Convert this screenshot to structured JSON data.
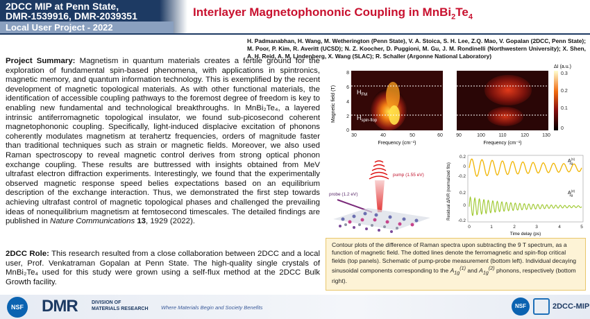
{
  "header": {
    "line1": "2DCC MIP at Penn State,",
    "line2": "DMR-1539916, DMR-2039351",
    "subline": "Local User Project - 2022",
    "title_main": "Interlayer Magnetophononic Coupling in MnBi",
    "title_sub1": "2",
    "title_mid": "Te",
    "title_sub2": "4"
  },
  "authors": "H. Padmanabhan, H. Wang, M. Wetherington (Penn State), V. A. Stoica, S. H. Lee, Z.Q. Mao, V. Gopalan (2DCC, Penn State); M. Poor, P. Kim, R. Averitt (UCSD); N. Z. Koocher, D. Puggioni, M. Gu, J. M. Rondinelli (Northwestern University); X. Shen, A. H. Reid, A. M. Lindenberg, X. Wang (SLAC); R. Schaller (Argonne National Laboratory)",
  "summary": {
    "label": "Project Summary:",
    "text": "Magnetism in quantum materials creates a fertile ground for the exploration of fundamental spin-based phenomena, with applications in spintronics, magnetic memory, and quantum information technology. This is exemplified by the recent development of magnetic topological materials. As with other functional materials, the identification of accessible coupling pathways to the foremost degree of freedom is key to enabling new fundamental and technological breakthroughs. In MnBi₂Te₄, a layered intrinsic antiferromagnetic topological insulator, we found sub-picosecond coherent magnetophononic coupling. Specifically, light-induced displacive excitation of phonons coherently modulates magnetism at terahertz frequencies, orders of magnitude faster than traditional techniques such as strain or magnetic fields. Moreover, we also used Raman spectroscopy to reveal magnetic control derives from strong optical phonon exchange coupling. These results are buttressed with insights obtained from MeV ultrafast electron diffraction experiments. Interestingly, we found that the experimentally observed magnetic response speed belies expectations based on an equilibrium description of the exchange interaction. Thus, we demonstrated the first step towards achieving ultrafast control of magnetic topological phases and challenged the prevailing ideas of nonequilibrium magnetism at femtosecond timescales. The detailed findings are published in",
    "journal": "Nature Communications",
    "volume": "13",
    "citation_tail": ", 1929 (2022)."
  },
  "role": {
    "label": "2DCC Role:",
    "text": "This research resulted from a close collaboration between 2DCC and a local user, Prof. Venkatraman Gopalan at Penn State. The high-quality single crystals of MnBi₂Te₄ used for this study were grown using a self-flux method at the 2DCC Bulk Growth facility."
  },
  "figure": {
    "ylabel_contour": "Magnetic field (T)",
    "xlabel_contour": "Frequency (cm⁻¹)",
    "colorbar_label": "ΔI (a.u.)",
    "colorbar_ticks": [
      "0.3",
      "0.2",
      "0.1",
      "0"
    ],
    "left_xticks": [
      "30",
      "40",
      "50",
      "60"
    ],
    "right_xticks": [
      "90",
      "100",
      "110",
      "120",
      "130"
    ],
    "yticks": [
      "8",
      "6",
      "4",
      "2",
      "0"
    ],
    "hfm_label": "H",
    "hfm_sub": "FM",
    "hsf_label": "H",
    "hsf_sub": "spin-flop",
    "pump_label": "pump (1.55 eV)",
    "probe_label": "probe (1.2 eV)",
    "trace_ylabel": "Residual ΔR/R (normalized fits)",
    "trace_xlabel": "Time delay (ps)",
    "trace_xticks": [
      "0",
      "1",
      "2",
      "3",
      "4",
      "5"
    ],
    "trace_yticks": [
      "0.2",
      "0",
      "-0.2",
      "0.2",
      "0",
      "-0.2"
    ],
    "a1_label": "A",
    "a1_sup": "(1)",
    "a1_sub": "1g",
    "a2_label": "A",
    "a2_sup": "(2)",
    "a2_sub": "1g",
    "colors": {
      "hot": "#ffd000",
      "mid": "#c0301c",
      "dark": "#2a0505",
      "trace1": "#f0b400",
      "trace2": "#9cc72a"
    }
  },
  "caption": "Contour plots of the difference of Raman spectra upon subtracting the 9 T spectrum, as a function of magnetic field. The dotted lines denote the ferromagnetic and spin-flop critical fields (top panels). Schematic of pump-probe measurement (bottom left). Individual decaying sinusoidal components corresponding to the",
  "caption_a1": "A",
  "caption_a1_sub": "1g",
  "caption_a1_sup": "(1)",
  "caption_and": "and",
  "caption_a2": "A",
  "caption_a2_sub": "1g",
  "caption_a2_sup": "(2)",
  "caption_tail": "phonons, respectively (bottom right).",
  "footer": {
    "nsf": "NSF",
    "dmr": "DMR",
    "dmr_sub1": "DIVISION OF",
    "dmr_sub2": "MATERIALS RESEARCH",
    "slogan": "Where Materials Begin and Society Benefits",
    "mip": "2DCC-MIP"
  }
}
